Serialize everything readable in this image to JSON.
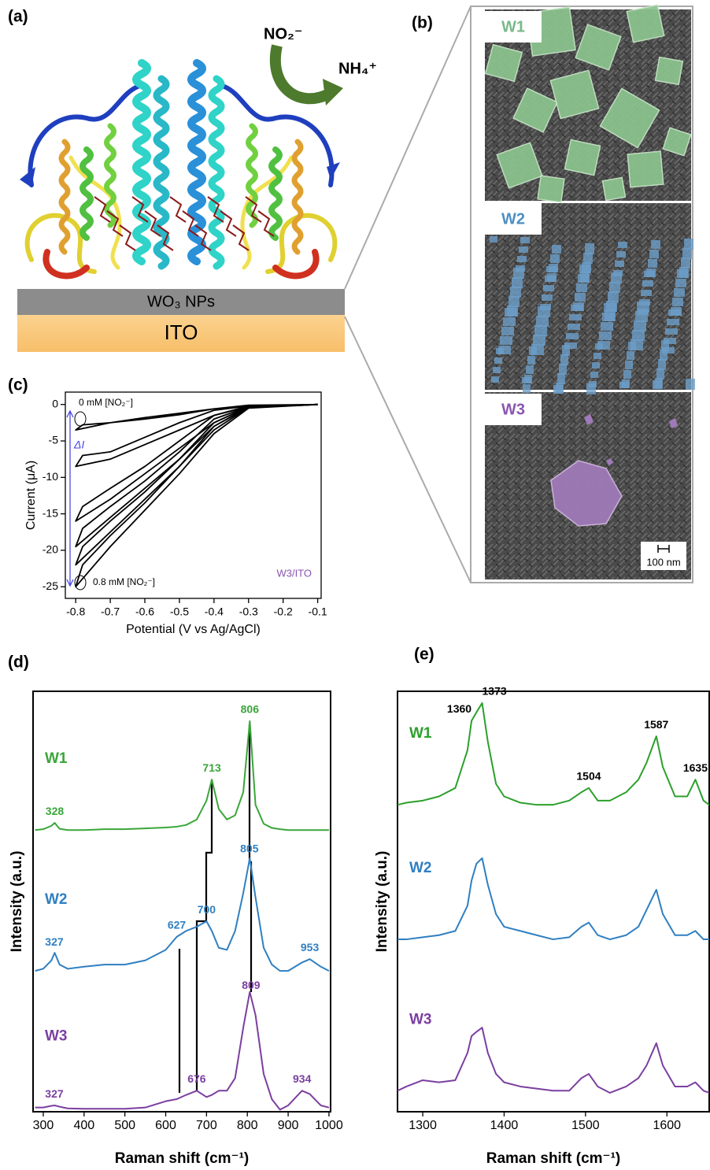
{
  "panel_labels": [
    "(a)",
    "(b)",
    "(c)",
    "(d)",
    "(e)"
  ],
  "panel_a": {
    "reactant": "NO₂⁻",
    "product": "NH₄⁺",
    "layers": [
      "WO₃ NPs",
      "ITO"
    ]
  },
  "panel_b": {
    "samples": [
      "W1",
      "W2",
      "W3"
    ],
    "scale_bar": "100 nm"
  },
  "chart_data": [
    {
      "type": "line",
      "xlabel": "Potential (V vs Ag/AgCl)",
      "ylabel": "Current (μA)",
      "xlim": [
        -0.83,
        -0.09
      ],
      "ylim": [
        -26.6,
        1.7
      ],
      "xticks": [
        -0.8,
        -0.7,
        -0.6,
        -0.5,
        -0.4,
        -0.3,
        -0.2,
        -0.1
      ],
      "yticks": [
        0,
        -5,
        -10,
        -15,
        -20,
        -25
      ],
      "annotations": [
        "0 mM [NO₂⁻]",
        "0.8 mM [NO₂⁻]",
        "ΔI",
        "W3/ITO"
      ],
      "x": [
        -0.1,
        -0.3,
        -0.4,
        -0.5,
        -0.6,
        -0.7,
        -0.8,
        -0.78,
        -0.7,
        -0.6,
        -0.5,
        -0.4,
        -0.3,
        -0.1
      ],
      "series": [
        {
          "color": "#000000",
          "values": [
            0,
            -0.2,
            -0.6,
            -1.2,
            -1.8,
            -2.5,
            -3.5,
            -2.8,
            -2.5,
            -2.0,
            -1.4,
            -0.6,
            -0.1,
            0
          ]
        },
        {
          "color": "#000000",
          "values": [
            0,
            -0.3,
            -1.5,
            -3.5,
            -5.5,
            -7.5,
            -8.5,
            -7.0,
            -6.5,
            -4.5,
            -2.5,
            -0.8,
            -0.2,
            0
          ]
        },
        {
          "color": "#000000",
          "values": [
            0,
            -0.3,
            -2.5,
            -6,
            -9.5,
            -13,
            -16,
            -14,
            -11.5,
            -8.5,
            -5,
            -1.5,
            -0.2,
            0
          ]
        },
        {
          "color": "#000000",
          "values": [
            0,
            -0.4,
            -3,
            -7.5,
            -11.5,
            -15.5,
            -19.5,
            -17,
            -14,
            -10.5,
            -6.5,
            -2,
            -0.3,
            0
          ]
        },
        {
          "color": "#000000",
          "values": [
            0,
            -0.4,
            -3.5,
            -8.5,
            -13,
            -17.5,
            -22,
            -19.5,
            -16,
            -12,
            -7.5,
            -2.5,
            -0.3,
            0
          ]
        },
        {
          "color": "#000000",
          "values": [
            0,
            -0.5,
            -4,
            -9.5,
            -14.5,
            -19.5,
            -25,
            -22,
            -18,
            -13.5,
            -8.5,
            -3,
            -0.3,
            0
          ]
        }
      ]
    },
    {
      "type": "line",
      "xlabel": "Raman shift (cm⁻¹)",
      "ylabel": "Intensity (a.u.)",
      "xlim": [
        275,
        1004
      ],
      "ylim": [
        0,
        10
      ],
      "xticks": [
        300,
        400,
        500,
        600,
        700,
        800,
        900,
        1000
      ],
      "x": [
        280,
        300,
        320,
        328,
        340,
        360,
        400,
        450,
        500,
        550,
        600,
        627,
        650,
        676,
        700,
        713,
        730,
        750,
        770,
        790,
        806,
        820,
        840,
        860,
        880,
        900,
        934,
        953,
        980,
        1000
      ],
      "series": [
        {
          "name": "W1",
          "color": "#3aa63a",
          "peaks": [
            328,
            713,
            806
          ],
          "values": [
            6.7,
            6.72,
            6.8,
            6.87,
            6.73,
            6.7,
            6.7,
            6.72,
            6.72,
            6.74,
            6.76,
            6.78,
            6.82,
            6.95,
            7.4,
            7.9,
            7.2,
            6.95,
            7.05,
            7.6,
            9.29,
            7.3,
            6.85,
            6.75,
            6.72,
            6.7,
            6.7,
            6.7,
            6.7,
            6.7
          ]
        },
        {
          "name": "W2",
          "color": "#2f7fc1",
          "peaks": [
            327,
            627,
            700,
            805,
            953
          ],
          "values": [
            3.35,
            3.4,
            3.6,
            3.78,
            3.5,
            3.4,
            3.45,
            3.5,
            3.5,
            3.6,
            3.85,
            4.16,
            4.3,
            4.4,
            4.53,
            4.3,
            3.9,
            3.85,
            4.3,
            5.2,
            6.03,
            5.1,
            3.9,
            3.5,
            3.35,
            3.35,
            3.55,
            3.63,
            3.45,
            3.35
          ]
        },
        {
          "name": "W3",
          "color": "#7b3fa0",
          "peaks": [
            327,
            676,
            809,
            934
          ],
          "values": [
            0.1,
            0.1,
            0.14,
            0.15,
            0.12,
            0.08,
            0.07,
            0.07,
            0.07,
            0.1,
            0.25,
            0.3,
            0.4,
            0.5,
            0.35,
            0.4,
            0.5,
            0.5,
            0.8,
            2.0,
            2.85,
            2.3,
            0.9,
            0.3,
            0.05,
            0.15,
            0.5,
            0.42,
            0.15,
            0.1
          ]
        }
      ]
    },
    {
      "type": "line",
      "xlabel": "Raman shift (cm⁻¹)",
      "ylabel": "Intensity (a.u.)",
      "xlim": [
        1269,
        1652
      ],
      "ylim": [
        0,
        10
      ],
      "xticks": [
        1300,
        1400,
        1500,
        1600
      ],
      "peak_label_color": "#000000",
      "x": [
        1269,
        1280,
        1300,
        1320,
        1340,
        1355,
        1360,
        1366,
        1373,
        1380,
        1390,
        1400,
        1420,
        1440,
        1460,
        1480,
        1495,
        1504,
        1515,
        1530,
        1550,
        1565,
        1575,
        1587,
        1595,
        1610,
        1625,
        1635,
        1645,
        1652
      ],
      "series": [
        {
          "name": "W1",
          "color": "#2ca02c",
          "peaks": [
            1360,
            1373,
            1504,
            1587,
            1635
          ],
          "values": [
            7.3,
            7.35,
            7.4,
            7.5,
            7.7,
            8.6,
            9.3,
            9.5,
            9.72,
            8.8,
            7.8,
            7.5,
            7.35,
            7.3,
            7.3,
            7.4,
            7.6,
            7.7,
            7.4,
            7.4,
            7.6,
            7.9,
            8.3,
            8.93,
            8.2,
            7.5,
            7.5,
            7.9,
            7.4,
            7.3
          ]
        },
        {
          "name": "W2",
          "color": "#2f7fc1",
          "values": [
            4.1,
            4.1,
            4.15,
            4.2,
            4.3,
            4.9,
            5.5,
            5.9,
            6.03,
            5.4,
            4.7,
            4.4,
            4.3,
            4.2,
            4.1,
            4.15,
            4.4,
            4.5,
            4.2,
            4.1,
            4.2,
            4.4,
            4.8,
            5.28,
            4.7,
            4.2,
            4.2,
            4.3,
            4.1,
            4.1
          ]
        },
        {
          "name": "W3",
          "color": "#7b3fa0",
          "values": [
            0.5,
            0.6,
            0.75,
            0.7,
            0.75,
            1.4,
            1.8,
            1.9,
            2.0,
            1.4,
            0.9,
            0.7,
            0.6,
            0.55,
            0.5,
            0.5,
            0.8,
            0.9,
            0.6,
            0.45,
            0.6,
            0.8,
            1.1,
            1.63,
            1.1,
            0.6,
            0.6,
            0.7,
            0.5,
            0.45
          ]
        }
      ]
    }
  ]
}
